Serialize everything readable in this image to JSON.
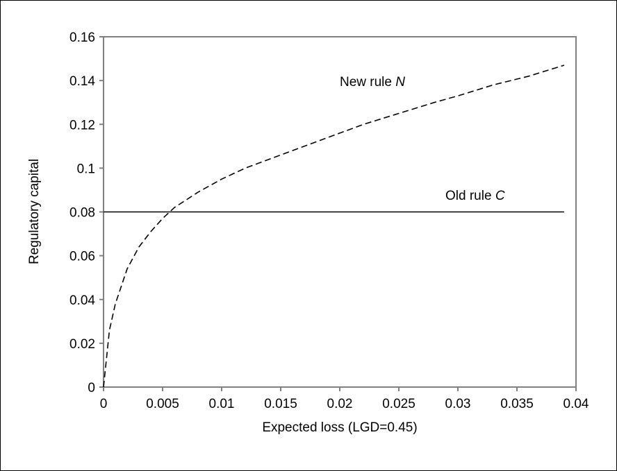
{
  "chart_data": {
    "type": "line",
    "xlabel": "Expected loss (LGD=0.45)",
    "ylabel": "Regulatory capital",
    "xlim": [
      0,
      0.04
    ],
    "ylim": [
      0,
      0.16
    ],
    "x_ticks": [
      "0",
      "0.005",
      "0.01",
      "0.015",
      "0.02",
      "0.025",
      "0.03",
      "0.035",
      "0.04"
    ],
    "y_ticks": [
      "0",
      "0.02",
      "0.04",
      "0.06",
      "0.08",
      "0.1",
      "0.12",
      "0.14",
      "0.16"
    ],
    "grid": false,
    "legend": "none",
    "series": [
      {
        "label_prefix": "New rule ",
        "label_symbol": "N",
        "style": "dashed",
        "color": "#000000",
        "x": [
          0,
          0.0005,
          0.001,
          0.002,
          0.003,
          0.004,
          0.005,
          0.006,
          0.008,
          0.01,
          0.012,
          0.015,
          0.018,
          0.02,
          0.022,
          0.025,
          0.028,
          0.03,
          0.033,
          0.036,
          0.039
        ],
        "y": [
          0,
          0.026,
          0.038,
          0.054,
          0.064,
          0.071,
          0.077,
          0.082,
          0.089,
          0.095,
          0.1,
          0.106,
          0.112,
          0.116,
          0.12,
          0.125,
          0.13,
          0.133,
          0.138,
          0.142,
          0.147
        ]
      },
      {
        "label_prefix": "Old rule ",
        "label_symbol": "C",
        "style": "solid",
        "color": "#000000",
        "x": [
          0,
          0.039
        ],
        "y": [
          0.08,
          0.08
        ]
      }
    ]
  }
}
